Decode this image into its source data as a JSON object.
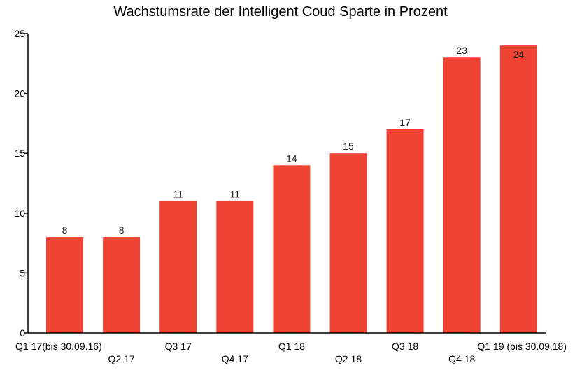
{
  "chart_data": {
    "type": "bar",
    "title": "Wachstumsrate der Intelligent Coud Sparte in Prozent",
    "xlabel": "",
    "ylabel": "",
    "ylim": [
      0,
      25
    ],
    "yticks": [
      0,
      5,
      10,
      15,
      20,
      25
    ],
    "categories": [
      "Q1 17(bis 30.09.16)",
      "Q2 17",
      "Q3 17",
      "Q4 17",
      "Q1 18",
      "Q2 18",
      "Q3 18",
      "Q4 18",
      "Q1 19 (bis 30.09.18)"
    ],
    "values": [
      8,
      8,
      11,
      11,
      14,
      15,
      17,
      23,
      24
    ],
    "bar_color": "#EE4233",
    "grid": false,
    "legend": "none"
  }
}
